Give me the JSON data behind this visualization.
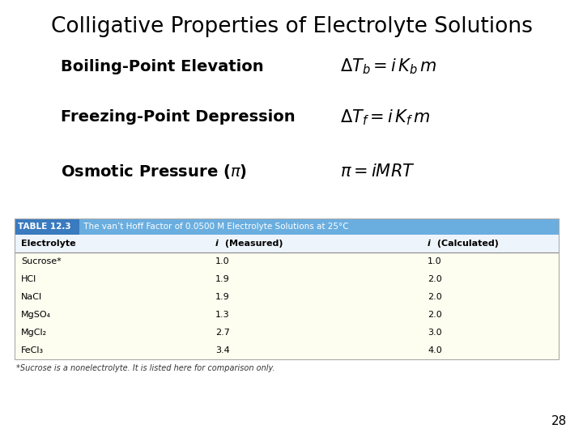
{
  "title": "Colligative Properties of Electrolyte Solutions",
  "title_fontsize": 19,
  "title_color": "#000000",
  "bg_color": "#ffffff",
  "rows": [
    {
      "label": "Boiling-Point Elevation",
      "formula": "$\\Delta T_b = i\\, K_b\\, m$"
    },
    {
      "label": "Freezing-Point Depression",
      "formula": "$\\Delta T_f = i\\, K_f\\, m$"
    },
    {
      "label": "Osmotic Pressure ($\\pi$)",
      "formula": "$\\pi = iMRT$"
    }
  ],
  "label_fontsize": 14,
  "formula_fontsize": 15,
  "table_header_dark": "#3a7abf",
  "table_header_bg": "#6aaee0",
  "table_header_text": "#ffffff",
  "table_col_header_bg": "#eef4fb",
  "table_body_bg": "#fdfdf0",
  "table_title": "TABLE 12.3",
  "table_subtitle": " The van’t Hoff Factor of 0.0500 M Electrolyte Solutions at 25°C",
  "col_headers": [
    "Electrolyte",
    "i (Measured)",
    "i (Calculated)"
  ],
  "col_headers_italic": [
    false,
    true,
    true
  ],
  "table_data": [
    [
      "Sucrose*",
      "1.0",
      "1.0"
    ],
    [
      "HCl",
      "1.9",
      "2.0"
    ],
    [
      "NaCl",
      "1.9",
      "2.0"
    ],
    [
      "MgSO₄",
      "1.3",
      "2.0"
    ],
    [
      "MgCl₂",
      "2.7",
      "3.0"
    ],
    [
      "FeCl₃",
      "3.4",
      "4.0"
    ]
  ],
  "footnote": "*Sucrose is a nonelectrolyte. It is listed here for comparison only.",
  "page_num": "28"
}
